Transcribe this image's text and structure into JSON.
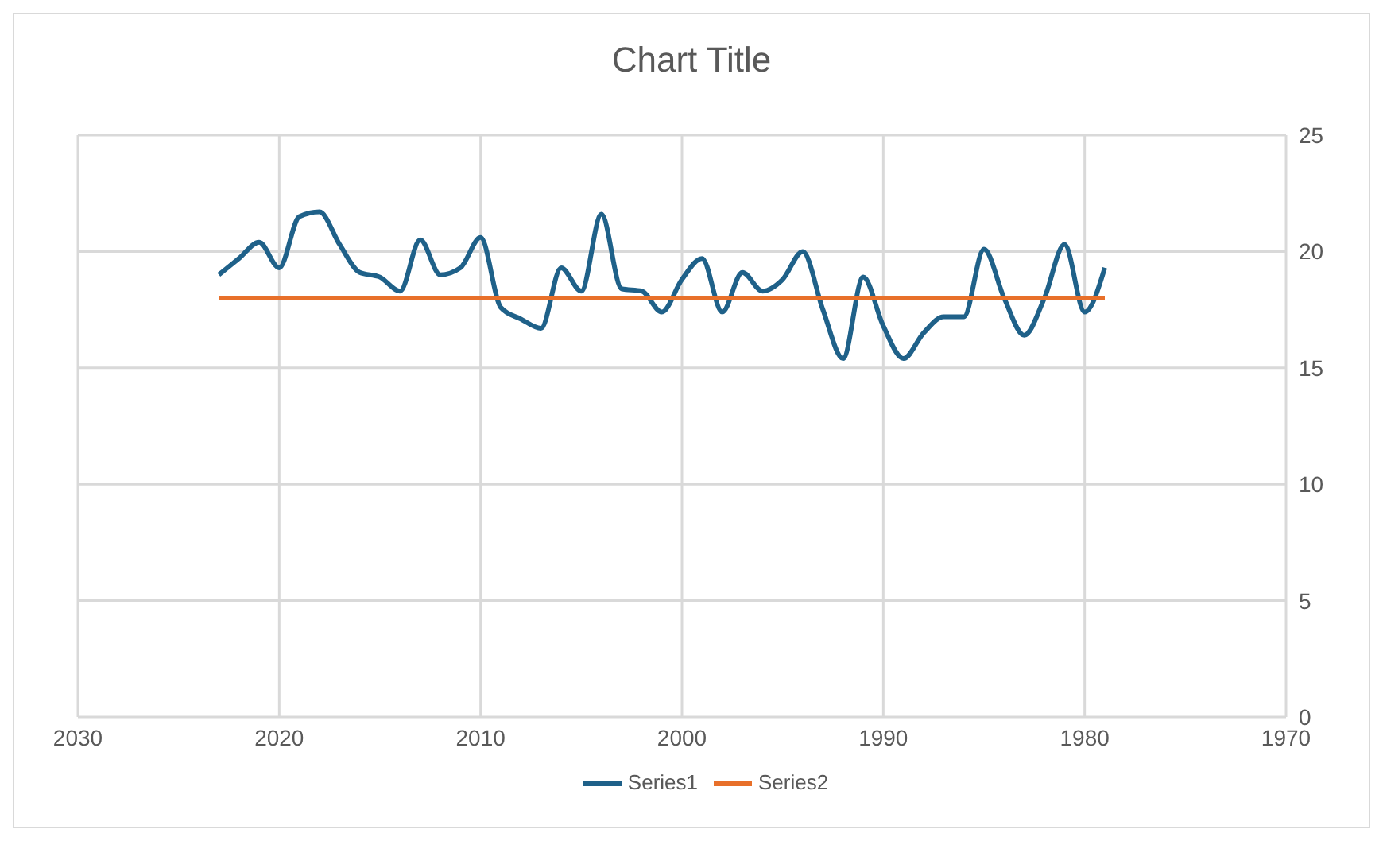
{
  "chart_data": {
    "type": "line",
    "title": "Chart Title",
    "xlim": [
      2030,
      1970
    ],
    "xticks": [
      2030,
      2020,
      2010,
      2000,
      1990,
      1980,
      1970
    ],
    "ylim": [
      0,
      25
    ],
    "yticks": [
      0,
      5,
      10,
      15,
      20,
      25
    ],
    "grid": true,
    "legend": "bottom",
    "marker": "none",
    "line_style": "solid",
    "series": [
      {
        "name": "Series1",
        "color": "#1f6189",
        "x": [
          2023,
          2022,
          2021,
          2020,
          2019,
          2018,
          2017,
          2016,
          2015,
          2014,
          2013,
          2012,
          2011,
          2010,
          2009,
          2008,
          2007,
          2006,
          2005,
          2004,
          2003,
          2002,
          2001,
          2000,
          1999,
          1998,
          1997,
          1996,
          1995,
          1994,
          1993,
          1992,
          1991,
          1990,
          1989,
          1988,
          1987,
          1986,
          1985,
          1984,
          1983,
          1982,
          1981,
          1980,
          1979
        ],
        "values": [
          19.0,
          19.7,
          20.4,
          19.3,
          21.5,
          21.7,
          20.3,
          19.1,
          18.9,
          18.3,
          20.5,
          19.0,
          19.3,
          20.6,
          17.6,
          17.1,
          16.7,
          19.3,
          18.3,
          21.6,
          18.4,
          18.3,
          17.4,
          18.8,
          19.7,
          17.4,
          19.1,
          18.3,
          18.8,
          20.0,
          17.5,
          15.4,
          18.9,
          16.8,
          15.4,
          16.5,
          17.2,
          17.2,
          20.1,
          18.0,
          16.4,
          18.0,
          20.3,
          17.4,
          19.3
        ]
      },
      {
        "name": "Series2",
        "color": "#e8702a",
        "x": [
          2023,
          1979
        ],
        "values": [
          18,
          18
        ]
      }
    ]
  }
}
